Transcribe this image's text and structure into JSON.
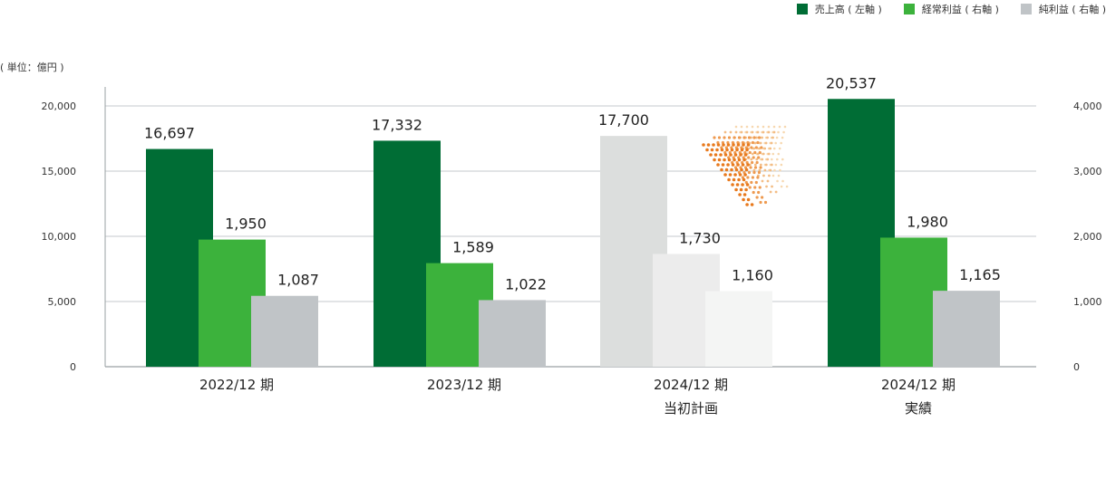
{
  "unit_label": "( 単位：億円 )",
  "legend": [
    {
      "label": "売上高 ( 左軸 )",
      "color": "#006d35"
    },
    {
      "label": "経常利益 ( 右軸 )",
      "color": "#3cb23c"
    },
    {
      "label": "純利益 ( 右軸 )",
      "color": "#c0c4c7"
    }
  ],
  "chart_data": {
    "type": "bar",
    "categories": [
      [
        "2022/12 期"
      ],
      [
        "2023/12 期"
      ],
      [
        "2024/12 期",
        "当初計画"
      ],
      [
        "2024/12 期",
        "実績"
      ]
    ],
    "series": [
      {
        "name": "売上高 ( 左軸 )",
        "axis": "left",
        "values": [
          16697,
          17332,
          17700,
          20537
        ],
        "labels": [
          "16,697",
          "17,332",
          "17,700",
          "20,537"
        ],
        "color": "#006d35"
      },
      {
        "name": "経常利益 ( 右軸 )",
        "axis": "right",
        "values": [
          1950,
          1589,
          1730,
          1980
        ],
        "labels": [
          "1,950",
          "1,589",
          "1,730",
          "1,980"
        ],
        "color": "#3cb23c"
      },
      {
        "name": "純利益 ( 右軸 )",
        "axis": "right",
        "values": [
          1087,
          1022,
          1160,
          1165
        ],
        "labels": [
          "1,087",
          "1,022",
          "1,160",
          "1,165"
        ],
        "color": "#c0c4c7"
      }
    ],
    "plan_category_index": 2,
    "plan_colors": [
      "#dcdedd",
      "#ececec",
      "#f4f5f4"
    ],
    "left_axis": {
      "ylim": [
        0,
        20000
      ],
      "ticks": [
        0,
        5000,
        10000,
        15000,
        20000
      ],
      "tick_labels": [
        "0",
        "5,000",
        "10,000",
        "15,000",
        "20,000"
      ]
    },
    "right_axis": {
      "ylim": [
        0,
        4000
      ],
      "ticks": [
        0,
        1000,
        2000,
        3000,
        4000
      ],
      "tick_labels": [
        "0",
        "1,000",
        "2,000",
        "3,000",
        "4,000"
      ]
    },
    "grid": true,
    "legend_position": "top-right",
    "decoration": "orange-dotted-triangle"
  }
}
